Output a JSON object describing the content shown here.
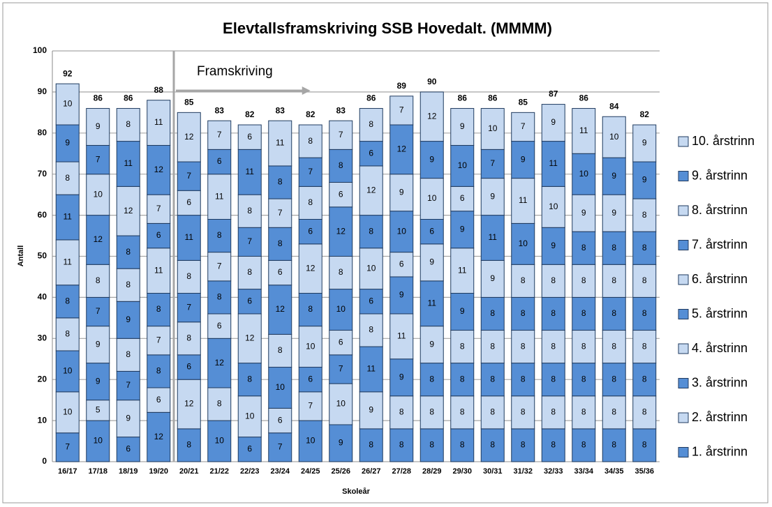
{
  "chart_data": {
    "type": "stacked_bar",
    "title": "Elevtallsframskriving SSB Hovedalt. (MMMM)",
    "annotation": "Framskriving",
    "x_label": "Skoleår",
    "y_label": "Antall",
    "categories": [
      "16/17",
      "17/18",
      "18/19",
      "19/20",
      "20/21",
      "21/22",
      "22/23",
      "23/24",
      "24/25",
      "25/26",
      "26/27",
      "27/28",
      "28/29",
      "29/30",
      "30/31",
      "31/32",
      "32/33",
      "33/34",
      "34/35",
      "35/36"
    ],
    "series": [
      {
        "name": "1. årstrinn",
        "color": "#558ed5",
        "values": [
          7,
          10,
          6,
          12,
          8,
          10,
          6,
          7,
          10,
          9,
          8,
          8,
          8,
          8,
          8,
          8,
          8,
          8,
          8,
          8
        ]
      },
      {
        "name": "2. årstrinn",
        "color": "#c6d9f1",
        "values": [
          10,
          5,
          9,
          6,
          12,
          8,
          10,
          6,
          7,
          10,
          9,
          8,
          8,
          8,
          8,
          8,
          8,
          8,
          8,
          8
        ]
      },
      {
        "name": "3. årstrinn",
        "color": "#558ed5",
        "values": [
          10,
          9,
          7,
          8,
          6,
          12,
          8,
          10,
          6,
          7,
          11,
          9,
          8,
          8,
          8,
          8,
          8,
          8,
          8,
          8
        ]
      },
      {
        "name": "4. årstrinn",
        "color": "#c6d9f1",
        "values": [
          8,
          9,
          8,
          7,
          8,
          6,
          12,
          8,
          10,
          6,
          8,
          11,
          9,
          8,
          8,
          8,
          8,
          8,
          8,
          8
        ]
      },
      {
        "name": "5. årstrinn",
        "color": "#558ed5",
        "values": [
          8,
          7,
          9,
          8,
          7,
          8,
          6,
          12,
          8,
          10,
          6,
          9,
          11,
          9,
          8,
          8,
          8,
          8,
          8,
          8
        ]
      },
      {
        "name": "6. årstrinn",
        "color": "#c6d9f1",
        "values": [
          11,
          8,
          8,
          11,
          8,
          7,
          8,
          6,
          12,
          8,
          10,
          6,
          9,
          11,
          9,
          8,
          8,
          8,
          8,
          8
        ]
      },
      {
        "name": "7. årstrinn",
        "color": "#558ed5",
        "values": [
          11,
          12,
          8,
          6,
          11,
          8,
          7,
          8,
          6,
          12,
          8,
          10,
          6,
          9,
          11,
          10,
          9,
          8,
          8,
          8
        ]
      },
      {
        "name": "8. årstrinn",
        "color": "#c6d9f1",
        "values": [
          8,
          10,
          12,
          7,
          6,
          11,
          8,
          7,
          8,
          6,
          12,
          9,
          10,
          6,
          9,
          11,
          10,
          9,
          9,
          8
        ]
      },
      {
        "name": "9. årstrinn",
        "color": "#558ed5",
        "values": [
          9,
          7,
          11,
          12,
          7,
          6,
          11,
          8,
          7,
          8,
          6,
          12,
          9,
          10,
          7,
          9,
          11,
          10,
          9,
          9
        ]
      },
      {
        "name": "10. årstrinn",
        "color": "#c6d9f1",
        "values": [
          10,
          9,
          8,
          11,
          12,
          7,
          6,
          11,
          8,
          7,
          8,
          7,
          12,
          9,
          10,
          7,
          9,
          11,
          10,
          9
        ]
      }
    ],
    "totals": [
      92,
      86,
      86,
      88,
      85,
      83,
      82,
      83,
      82,
      83,
      86,
      89,
      90,
      86,
      86,
      85,
      87,
      86,
      84,
      82
    ],
    "ylim": [
      0,
      100
    ],
    "yticks": [
      0,
      10,
      20,
      30,
      40,
      50,
      60,
      70,
      80,
      90,
      100
    ],
    "grid": true,
    "legend": "right"
  }
}
